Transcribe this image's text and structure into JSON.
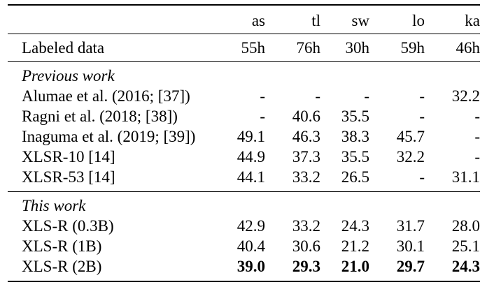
{
  "colors": {
    "background": "#ffffff",
    "text": "#000000",
    "rule": "#000000"
  },
  "table": {
    "header": {
      "corner": "",
      "cols": [
        "as",
        "tl",
        "sw",
        "lo",
        "ka"
      ]
    },
    "labeled": {
      "label": "Labeled data",
      "values": [
        "55h",
        "76h",
        "30h",
        "59h",
        "46h"
      ]
    },
    "sections": [
      {
        "title": "Previous work",
        "rows": [
          {
            "label": "Alumae et al. (2016; [37])",
            "values": [
              "-",
              "-",
              "-",
              "-",
              "32.2"
            ]
          },
          {
            "label": "Ragni et al. (2018; [38])",
            "values": [
              "-",
              "40.6",
              "35.5",
              "-",
              "-"
            ]
          },
          {
            "label": "Inaguma et al. (2019; [39])",
            "values": [
              "49.1",
              "46.3",
              "38.3",
              "45.7",
              "-"
            ]
          },
          {
            "label": "XLSR-10 [14]",
            "values": [
              "44.9",
              "37.3",
              "35.5",
              "32.2",
              "-"
            ]
          },
          {
            "label": "XLSR-53 [14]",
            "values": [
              "44.1",
              "33.2",
              "26.5",
              "-",
              "31.1"
            ]
          }
        ]
      },
      {
        "title": "This work",
        "rows": [
          {
            "label": "XLS-R (0.3B)",
            "values": [
              "42.9",
              "33.2",
              "24.3",
              "31.7",
              "28.0"
            ]
          },
          {
            "label": "XLS-R (1B)",
            "values": [
              "40.4",
              "30.6",
              "21.2",
              "30.1",
              "25.1"
            ]
          },
          {
            "label": "XLS-R (2B)",
            "values": [
              "39.0",
              "29.3",
              "21.0",
              "29.7",
              "24.3"
            ]
          }
        ]
      }
    ]
  }
}
